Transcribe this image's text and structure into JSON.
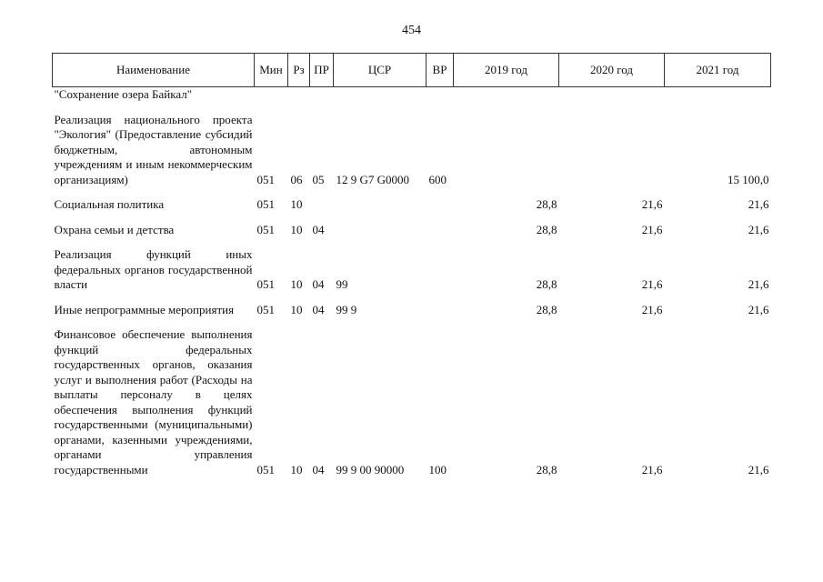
{
  "page_number": "454",
  "header": {
    "columns": [
      "Наименование",
      "Мин",
      "Рз",
      "ПР",
      "ЦСР",
      "ВР",
      "2019 год",
      "2020 год",
      "2021 год"
    ]
  },
  "table": {
    "rows": [
      {
        "name": "\"Сохранение озера Байкал\""
      },
      {
        "name": "Реализация национального проекта \"Экология\" (Предоставление субсидий бюджетным, автономным учреждениям и иным некоммерческим организациям)",
        "min": "051",
        "rz": "06",
        "pr": "05",
        "csr": "12 9 G7 G0000",
        "vr": "600",
        "y2021": "15 100,0"
      },
      {
        "name": "Социальная политика",
        "min": "051",
        "rz": "10",
        "y2019": "28,8",
        "y2020": "21,6",
        "y2021": "21,6"
      },
      {
        "name": "Охрана семьи и детства",
        "min": "051",
        "rz": "10",
        "pr": "04",
        "y2019": "28,8",
        "y2020": "21,6",
        "y2021": "21,6"
      },
      {
        "name": "Реализация функций иных федеральных органов государственной власти",
        "min": "051",
        "rz": "10",
        "pr": "04",
        "csr": "99",
        "y2019": "28,8",
        "y2020": "21,6",
        "y2021": "21,6"
      },
      {
        "name": "Иные непрограммные мероприятия",
        "min": "051",
        "rz": "10",
        "pr": "04",
        "csr": "99 9",
        "y2019": "28,8",
        "y2020": "21,6",
        "y2021": "21,6"
      },
      {
        "name": "Финансовое обеспечение выполнения функций федеральных государственных органов, оказания услуг и выполнения работ (Расходы на выплаты персоналу в целях обеспечения выполнения функций государственными (муниципальными) органами, казенными учреждениями, органами управления государственными",
        "min": "051",
        "rz": "10",
        "pr": "04",
        "csr": "99 9 00 90000",
        "vr": "100",
        "y2019": "28,8",
        "y2020": "21,6",
        "y2021": "21,6"
      }
    ]
  }
}
